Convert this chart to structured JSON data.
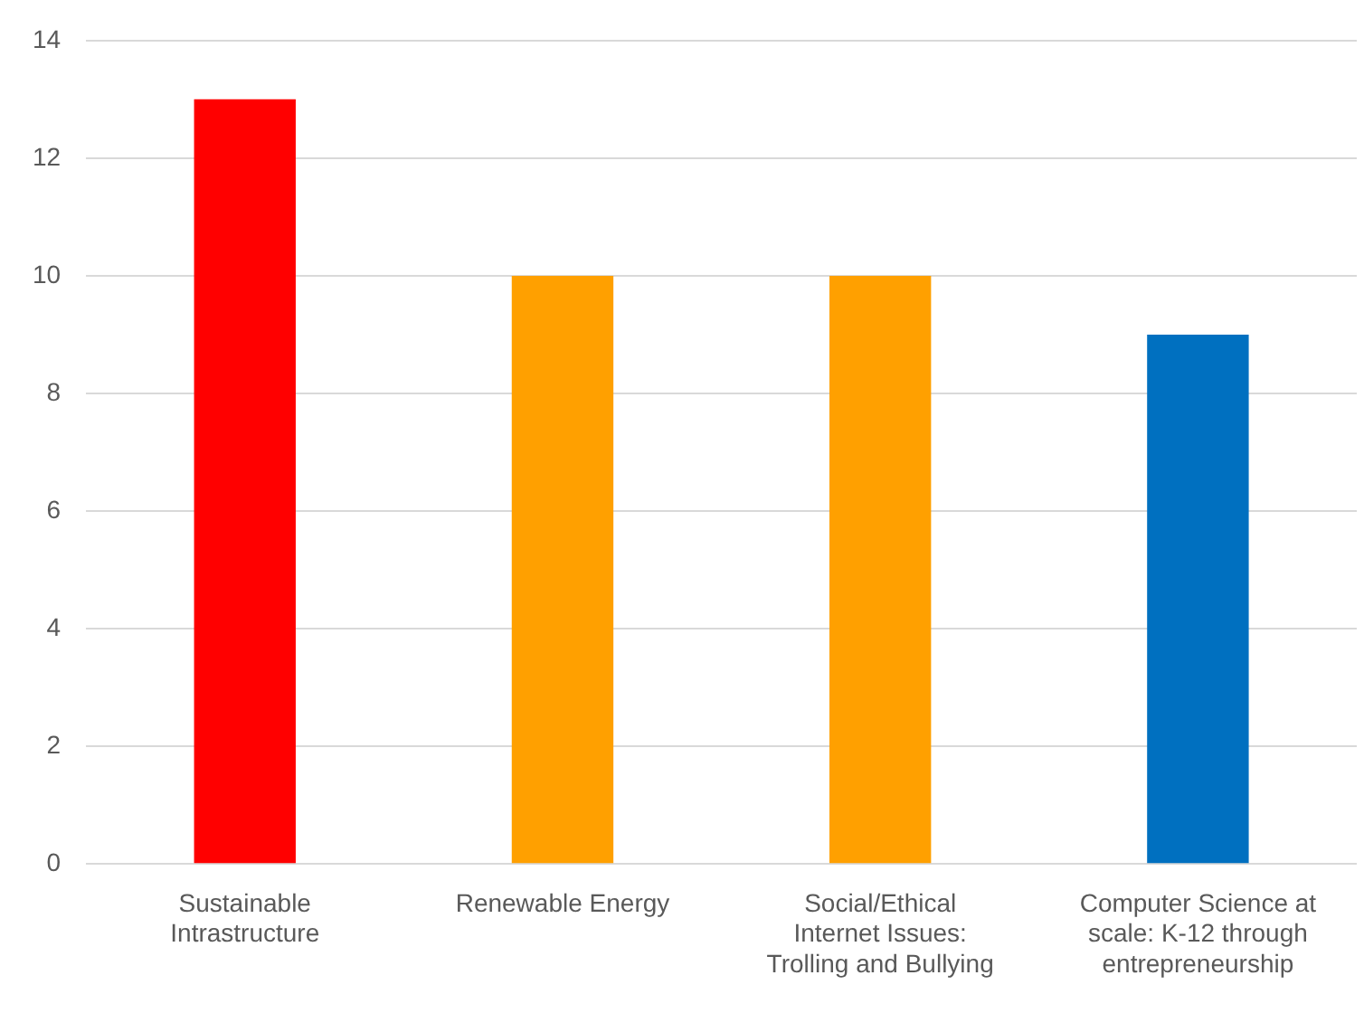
{
  "chart_data": {
    "type": "bar",
    "categories": [
      "Sustainable Intrastructure",
      "Renewable Energy",
      "Social/Ethical Internet Issues: Trolling and Bullying",
      "Computer Science at scale: K-12 through entrepreneurship"
    ],
    "values": [
      13,
      10,
      10,
      9
    ],
    "colors": [
      "#ff0000",
      "#ffa000",
      "#ffa000",
      "#0070c0"
    ],
    "ylim": [
      0,
      14
    ],
    "yticks": [
      0,
      2,
      4,
      6,
      8,
      10,
      12,
      14
    ],
    "grid": "y",
    "legend": false
  }
}
